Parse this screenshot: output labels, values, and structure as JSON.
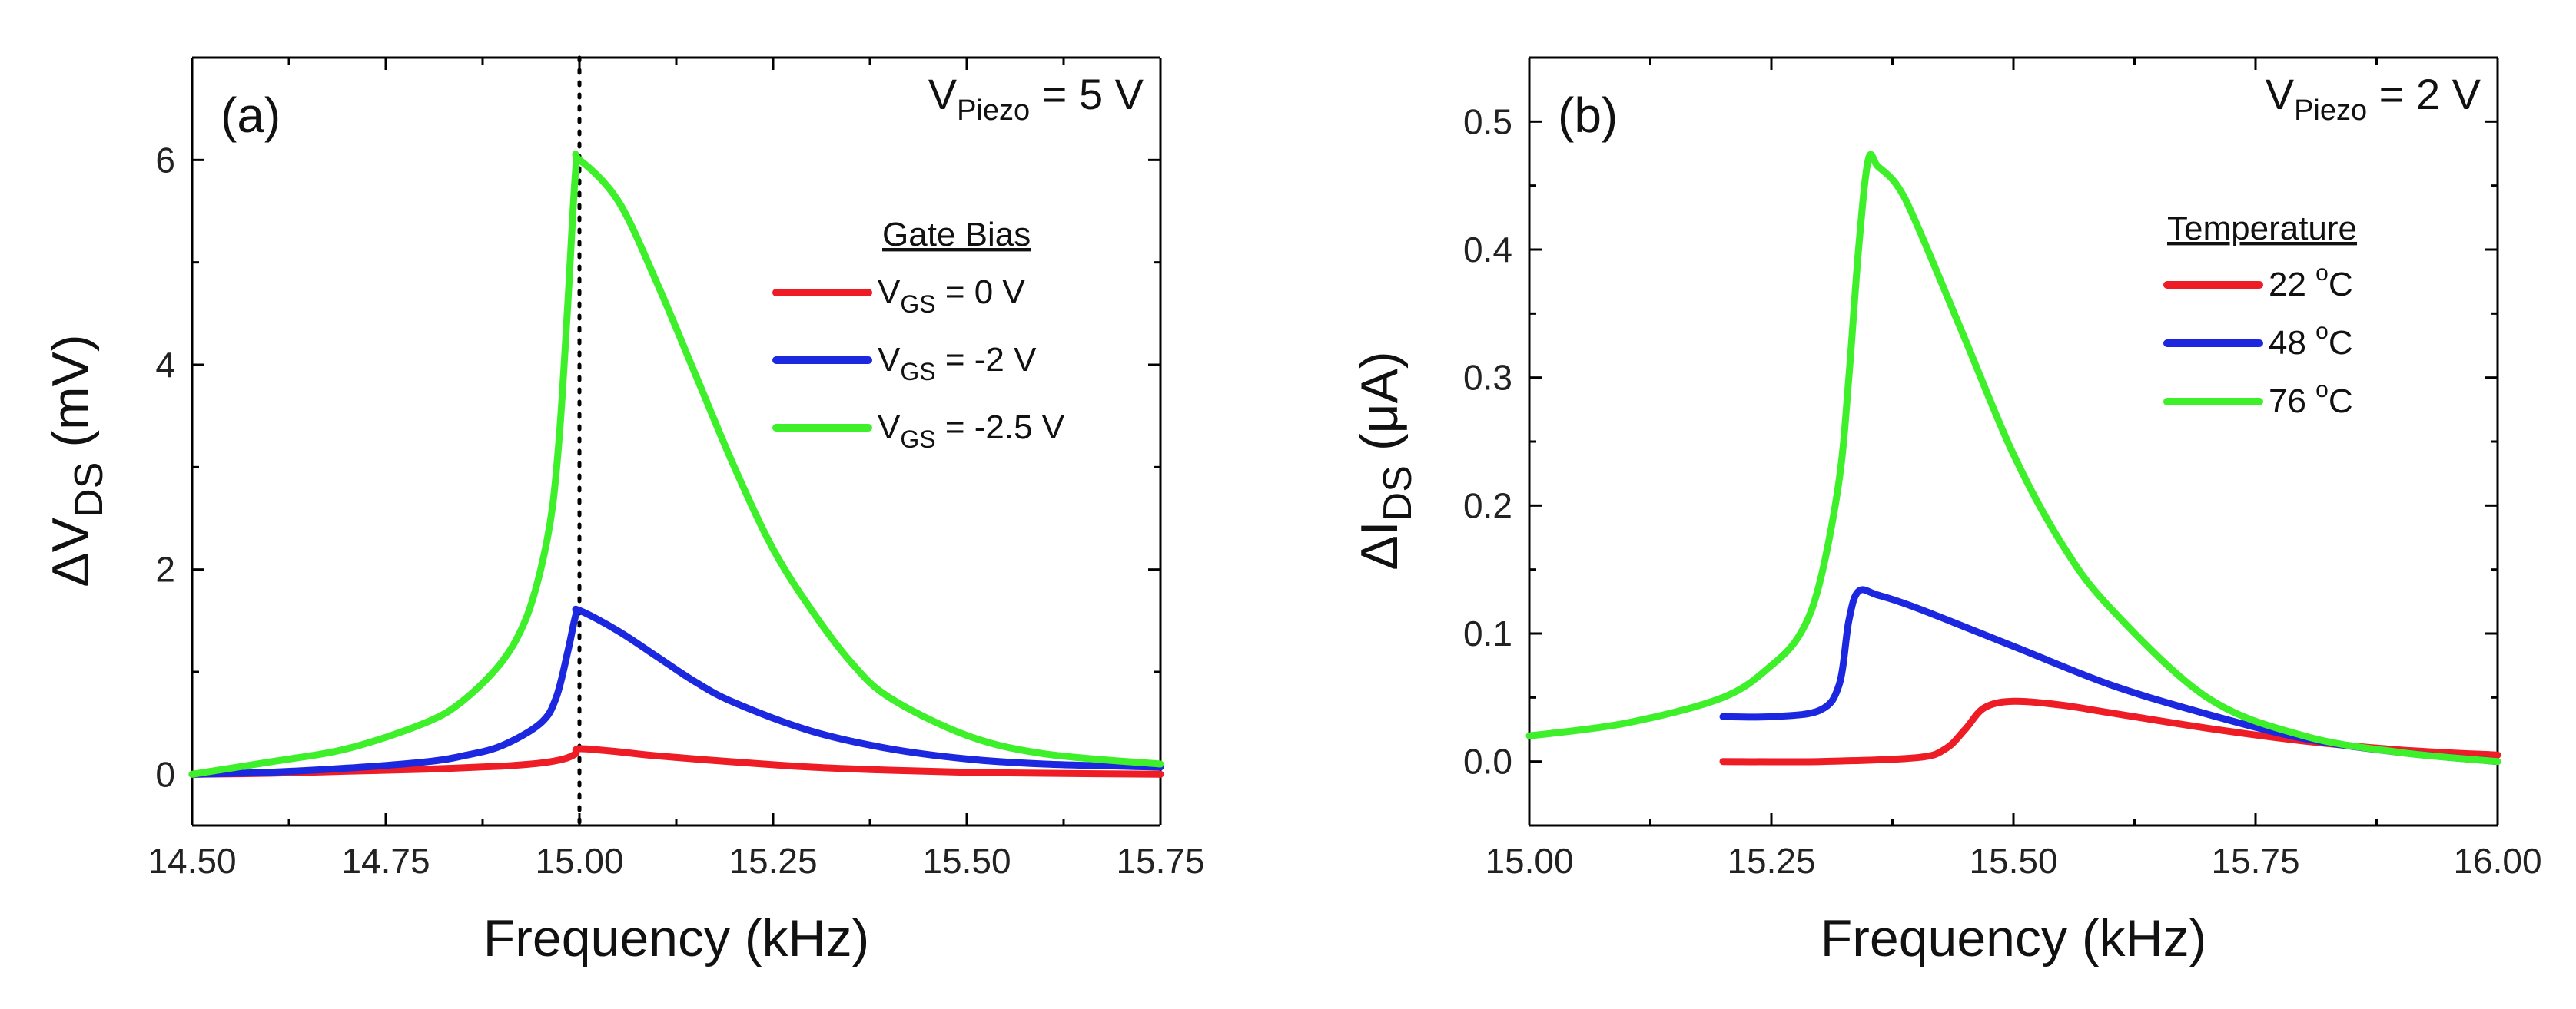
{
  "chart_data": [
    {
      "type": "line",
      "panel_label": "(a)",
      "xlabel": "Frequency (kHz)",
      "ylabel": "ΔV_DS (mV)",
      "ylabel_main": "ΔV",
      "ylabel_sub": "DS",
      "ylabel_unit": " (mV)",
      "xlim": [
        14.5,
        15.75
      ],
      "ylim": [
        -0.5,
        7
      ],
      "x_ticks": [
        14.5,
        14.75,
        15.0,
        15.25,
        15.5,
        15.75
      ],
      "x_tick_labels": [
        "14.50",
        "14.75",
        "15.00",
        "15.25",
        "15.50",
        "15.75"
      ],
      "y_ticks": [
        0,
        2,
        4,
        6
      ],
      "y_tick_labels": [
        "0",
        "2",
        "4",
        "6"
      ],
      "annotation": {
        "main": "V",
        "sub": "Piezo",
        "rest": " = 5 V"
      },
      "vertical_reference_line": {
        "x": 15.0,
        "style": "dotted"
      },
      "legend_title": "Gate Bias",
      "series": [
        {
          "name": "V_GS = 0 V",
          "label_main": "V",
          "label_sub": "GS",
          "label_rest": " = 0 V",
          "color": "#ee1c25",
          "x": [
            14.5,
            14.6,
            14.7,
            14.8,
            14.9,
            14.95,
            14.98,
            14.995,
            15.0,
            15.05,
            15.1,
            15.2,
            15.3,
            15.4,
            15.5,
            15.6,
            15.75
          ],
          "y": [
            0.0,
            0.01,
            0.03,
            0.05,
            0.08,
            0.11,
            0.15,
            0.2,
            0.25,
            0.22,
            0.18,
            0.12,
            0.07,
            0.04,
            0.02,
            0.01,
            0.0
          ]
        },
        {
          "name": "V_GS = -2 V",
          "label_main": "V",
          "label_sub": "GS",
          "label_rest": " = -2 V",
          "color": "#1c27e0",
          "x": [
            14.5,
            14.6,
            14.7,
            14.8,
            14.85,
            14.9,
            14.95,
            14.97,
            14.985,
            14.995,
            15.0,
            15.05,
            15.1,
            15.15,
            15.2,
            15.3,
            15.4,
            15.5,
            15.6,
            15.75
          ],
          "y": [
            0.0,
            0.02,
            0.06,
            0.12,
            0.18,
            0.28,
            0.5,
            0.75,
            1.2,
            1.55,
            1.6,
            1.4,
            1.15,
            0.9,
            0.7,
            0.42,
            0.25,
            0.15,
            0.1,
            0.07
          ]
        },
        {
          "name": "V_GS = -2.5 V",
          "label_main": "V",
          "label_sub": "GS",
          "label_rest": " = -2.5 V",
          "color": "#3df02a",
          "x": [
            14.5,
            14.6,
            14.7,
            14.8,
            14.85,
            14.9,
            14.93,
            14.95,
            14.965,
            14.975,
            14.985,
            14.995,
            15.0,
            15.05,
            15.1,
            15.15,
            15.2,
            15.25,
            15.3,
            15.35,
            15.4,
            15.5,
            15.6,
            15.75
          ],
          "y": [
            0.0,
            0.12,
            0.25,
            0.5,
            0.72,
            1.1,
            1.5,
            2.0,
            2.6,
            3.4,
            4.6,
            5.9,
            6.0,
            5.6,
            4.8,
            3.9,
            3.0,
            2.2,
            1.6,
            1.1,
            0.75,
            0.38,
            0.2,
            0.1
          ]
        }
      ]
    },
    {
      "type": "line",
      "panel_label": "(b)",
      "xlabel": "Frequency (kHz)",
      "ylabel": "ΔI_DS (μA)",
      "ylabel_main": "ΔI",
      "ylabel_sub": "DS",
      "ylabel_unit": " (μA)",
      "xlim": [
        15.0,
        16.0
      ],
      "ylim": [
        -0.05,
        0.55
      ],
      "x_ticks": [
        15.0,
        15.25,
        15.5,
        15.75,
        16.0
      ],
      "x_tick_labels": [
        "15.00",
        "15.25",
        "15.50",
        "15.75",
        "16.00"
      ],
      "y_ticks": [
        0.0,
        0.1,
        0.2,
        0.3,
        0.4,
        0.5
      ],
      "y_tick_labels": [
        "0.0",
        "0.1",
        "0.2",
        "0.3",
        "0.4",
        "0.5"
      ],
      "annotation": {
        "main": "V",
        "sub": "Piezo",
        "rest": " = 2 V"
      },
      "legend_title": "Temperature",
      "series": [
        {
          "name": "22 °C",
          "label_main": "22 ",
          "label_sub": "",
          "label_sup": "o",
          "label_rest": "C",
          "color": "#ee1c25",
          "x": [
            15.2,
            15.3,
            15.4,
            15.43,
            15.45,
            15.47,
            15.5,
            15.55,
            15.6,
            15.7,
            15.8,
            15.9,
            16.0
          ],
          "y": [
            0.0,
            0.0,
            0.003,
            0.01,
            0.025,
            0.042,
            0.047,
            0.044,
            0.038,
            0.026,
            0.016,
            0.009,
            0.005
          ]
        },
        {
          "name": "48 °C",
          "label_main": "48 ",
          "label_sub": "",
          "label_sup": "o",
          "label_rest": "C",
          "color": "#1c27e0",
          "x": [
            15.2,
            15.25,
            15.3,
            15.32,
            15.33,
            15.34,
            15.36,
            15.4,
            15.5,
            15.6,
            15.7,
            15.8,
            15.9,
            16.0
          ],
          "y": [
            0.035,
            0.035,
            0.04,
            0.06,
            0.11,
            0.133,
            0.13,
            0.12,
            0.09,
            0.06,
            0.037,
            0.018,
            0.007,
            0.0
          ]
        },
        {
          "name": "76 °C",
          "label_main": "76 ",
          "label_sub": "",
          "label_sup": "o",
          "label_rest": "C",
          "color": "#3df02a",
          "x": [
            15.0,
            15.1,
            15.2,
            15.25,
            15.28,
            15.3,
            15.32,
            15.33,
            15.34,
            15.35,
            15.36,
            15.38,
            15.4,
            15.45,
            15.5,
            15.55,
            15.6,
            15.7,
            15.8,
            15.9,
            16.0
          ],
          "y": [
            0.02,
            0.03,
            0.05,
            0.075,
            0.1,
            0.14,
            0.22,
            0.3,
            0.4,
            0.47,
            0.465,
            0.45,
            0.42,
            0.33,
            0.24,
            0.17,
            0.12,
            0.05,
            0.02,
            0.007,
            0.0
          ]
        }
      ]
    }
  ]
}
